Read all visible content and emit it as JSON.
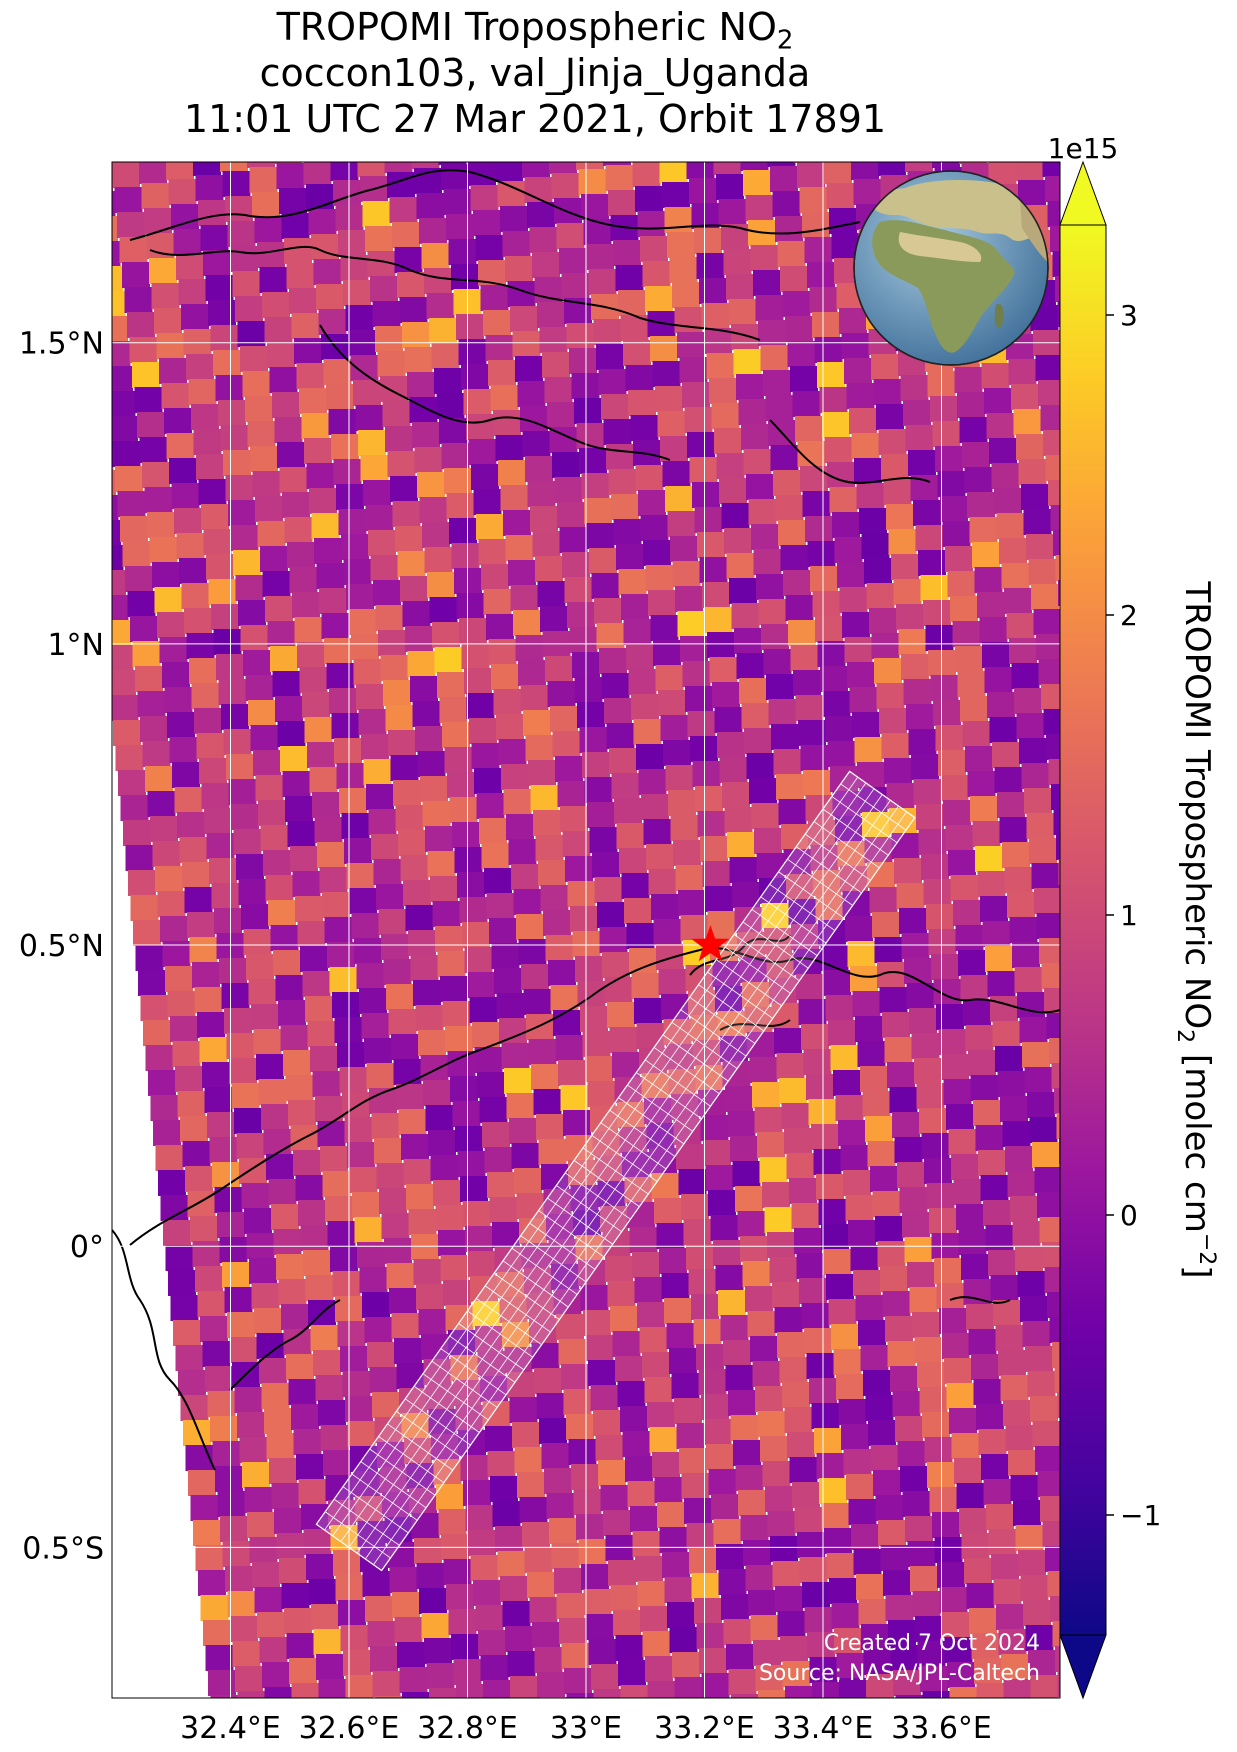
{
  "title": {
    "line1_main": "TROPOMI Tropospheric NO",
    "line1_sub": "2",
    "line2": "coccon103, val_Jinja_Uganda",
    "line3": "11:01 UTC 27 Mar 2021, Orbit 17891"
  },
  "chart_data": {
    "type": "heatmap",
    "map_extent": {
      "lon": [
        32.2,
        33.8
      ],
      "lat": [
        -0.75,
        1.8
      ]
    },
    "x_ticks": [
      {
        "value": 32.4,
        "label": "32.4°E"
      },
      {
        "value": 32.6,
        "label": "32.6°E"
      },
      {
        "value": 32.8,
        "label": "32.8°E"
      },
      {
        "value": 33.0,
        "label": "33°E"
      },
      {
        "value": 33.2,
        "label": "33.2°E"
      },
      {
        "value": 33.4,
        "label": "33.4°E"
      },
      {
        "value": 33.6,
        "label": "33.6°E"
      }
    ],
    "y_ticks": [
      {
        "value": 1.5,
        "label": "1.5°N"
      },
      {
        "value": 1.0,
        "label": "1°N"
      },
      {
        "value": 0.5,
        "label": "0.5°N"
      },
      {
        "value": 0.0,
        "label": "0°"
      },
      {
        "value": -0.5,
        "label": "0.5°S"
      }
    ],
    "grid": true,
    "site_marker": {
      "lon": 33.21,
      "lat": 0.5,
      "color": "#ff0000"
    },
    "colorbar": {
      "label_main": "TROPOMI Tropospheric NO",
      "label_sub": "2",
      "label_units": " [molec cm",
      "label_exp": "−2",
      "label_close": "]",
      "multiplier": "1e15",
      "range": [
        -1.4,
        3.3
      ],
      "ticks": [
        {
          "value": 3,
          "label": "3"
        },
        {
          "value": 2,
          "label": "2"
        },
        {
          "value": 1,
          "label": "1"
        },
        {
          "value": 0,
          "label": "0"
        },
        {
          "value": -1,
          "label": "−1"
        }
      ],
      "colormap": "plasma",
      "extend": "both",
      "extend_low_color": "#0d0887",
      "extend_high_color": "#f0f921"
    },
    "swath": {
      "start": {
        "lon": 32.6,
        "lat": -0.5
      },
      "end": {
        "lon": 33.5,
        "lat": 0.75
      },
      "color": "#ffffff"
    },
    "inset_globe": {
      "marker_color": "#ff0000"
    }
  },
  "credits": {
    "line1": "Created 7 Oct 2024",
    "line2": "Source: NASA/JPL-Caltech"
  }
}
